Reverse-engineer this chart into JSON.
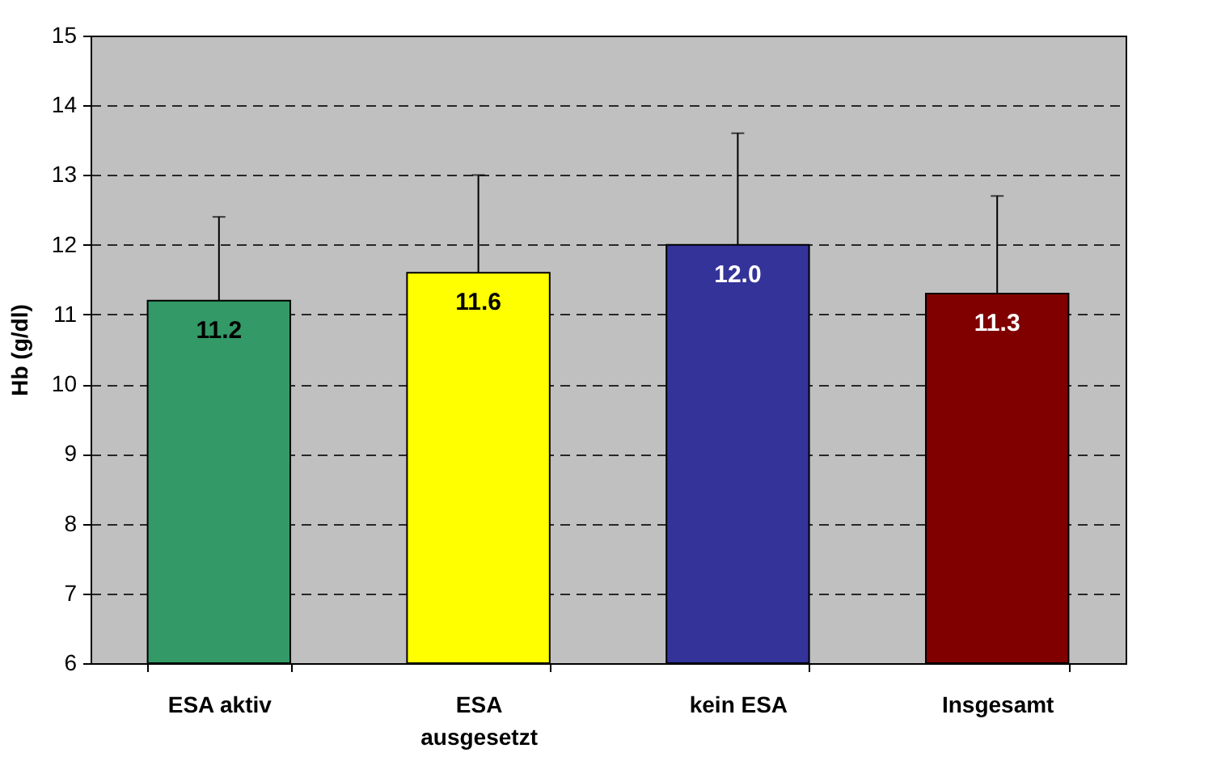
{
  "chart_data": {
    "type": "bar",
    "ylabel": "Hb (g/dl)",
    "categories": [
      "ESA aktiv",
      "ESA ausgesetzt",
      "kein ESA",
      "Insgesamt"
    ],
    "values": [
      11.2,
      11.6,
      12.0,
      11.3
    ],
    "colors": [
      "#339966",
      "#ffff00",
      "#333399",
      "#800000"
    ],
    "errors": [
      [
        11.2,
        12.4
      ],
      [
        11.6,
        13.0
      ],
      [
        12.0,
        13.6
      ],
      [
        11.3,
        12.7
      ]
    ],
    "value_labels": [
      "11.2",
      "11.6",
      "12.0",
      "11.3"
    ],
    "ylim": [
      6,
      15
    ],
    "yticks": [
      6,
      7,
      8,
      9,
      10,
      11,
      12,
      13,
      14,
      15
    ],
    "grid": "y"
  }
}
